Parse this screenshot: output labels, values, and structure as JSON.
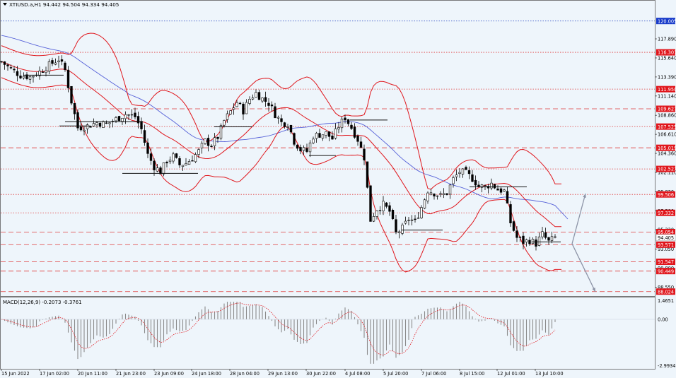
{
  "header": {
    "symbol_line": "XTIUSD.a,H1  94.442 94.504 94.334 94.405"
  },
  "macd_header": "MACD(12,26,9) -0.2073 -0.3761",
  "colors": {
    "background": "#eef5fb",
    "bb": "#e0161c",
    "ma": "#5560d8",
    "candle": "#000000",
    "level_line": "#e03a3a",
    "level_label_bg": "#e0161c",
    "price_label_bg": "#ffffff",
    "top_label_bg": "#1538c9",
    "macd_hist": "#8a8a8a",
    "macd_signal": "#e0161c",
    "arrow": "#8c93a6"
  },
  "chart_data": [
    {
      "type": "candlestick",
      "name": "price",
      "ylim": [
        87.5,
        122.4
      ],
      "x_tick_labels": [
        "15 Jun 2022",
        "17 Jun 02:00",
        "20 Jun 11:00",
        "21 Jun 23:00",
        "23 Jun 09:00",
        "24 Jun 18:00",
        "28 Jun 04:00",
        "29 Jun 13:00",
        "30 Jun 22:00",
        "4 Jul 08:00",
        "5 Jul 20:00",
        "7 Jul 06:00",
        "8 Jul 15:00",
        "12 Jul 01:00",
        "13 Jul 10:00"
      ],
      "y_axis_labels": [
        "117.890",
        "115.640",
        "113.390",
        "111.140",
        "108.860",
        "106.610",
        "104.360",
        "102.110",
        "99.830",
        "97.580",
        "95.330",
        "93.050",
        "90.800",
        "88.550"
      ],
      "horizontal_levels": [
        {
          "label": "120.005",
          "value": 120.005,
          "highlight": "blue"
        },
        {
          "label": "116.301",
          "value": 116.301
        },
        {
          "label": "111.950",
          "value": 111.95
        },
        {
          "label": "109.627",
          "value": 109.627
        },
        {
          "label": "107.525",
          "value": 107.525
        },
        {
          "label": "105.019",
          "value": 105.019
        },
        {
          "label": "102.521",
          "value": 102.521
        },
        {
          "label": "99.506",
          "value": 99.506
        },
        {
          "label": "97.332",
          "value": 97.332
        },
        {
          "label": "95.054",
          "value": 95.054
        },
        {
          "label": "93.571",
          "value": 93.571
        },
        {
          "label": "91.547",
          "value": 91.547
        },
        {
          "label": "90.449",
          "value": 90.449
        },
        {
          "label": "88.024",
          "value": 88.024
        }
      ],
      "current_price": {
        "label": "94.405",
        "value": 94.405
      },
      "last_bar": {
        "open": 94.442,
        "high": 94.504,
        "low": 94.334,
        "close": 94.405
      },
      "close_path": [
        [
          0,
          115.2
        ],
        [
          3,
          114.3
        ],
        [
          6,
          113.6
        ],
        [
          9,
          113.4
        ],
        [
          12,
          114.0
        ],
        [
          15,
          114.8
        ],
        [
          18,
          115.5
        ],
        [
          20,
          114.2
        ],
        [
          22,
          110.5
        ],
        [
          24,
          107.4
        ],
        [
          27,
          107.6
        ],
        [
          30,
          108.0
        ],
        [
          33,
          107.8
        ],
        [
          36,
          108.4
        ],
        [
          39,
          109.0
        ],
        [
          42,
          108.7
        ],
        [
          44,
          107.2
        ],
        [
          46,
          104.2
        ],
        [
          48,
          102.8
        ],
        [
          50,
          102.2
        ],
        [
          52,
          103.5
        ],
        [
          54,
          104.0
        ],
        [
          56,
          103.0
        ],
        [
          58,
          103.2
        ],
        [
          60,
          103.8
        ],
        [
          62,
          104.6
        ],
        [
          64,
          105.8
        ],
        [
          66,
          105.4
        ],
        [
          68,
          106.3
        ],
        [
          70,
          108.2
        ],
        [
          72,
          109.3
        ],
        [
          74,
          110.4
        ],
        [
          76,
          109.4
        ],
        [
          78,
          110.8
        ],
        [
          80,
          111.5
        ],
        [
          82,
          110.8
        ],
        [
          84,
          110.3
        ],
        [
          86,
          109.0
        ],
        [
          88,
          108.0
        ],
        [
          90,
          107.9
        ],
        [
          92,
          105.8
        ],
        [
          94,
          104.8
        ],
        [
          96,
          104.6
        ],
        [
          98,
          106.4
        ],
        [
          100,
          106.6
        ],
        [
          102,
          106.7
        ],
        [
          104,
          106.1
        ],
        [
          106,
          107.6
        ],
        [
          108,
          108.6
        ],
        [
          110,
          107.4
        ],
        [
          112,
          106.0
        ],
        [
          114,
          103.9
        ],
        [
          116,
          96.5
        ],
        [
          118,
          97.8
        ],
        [
          120,
          98.3
        ],
        [
          122,
          97.5
        ],
        [
          124,
          94.9
        ],
        [
          126,
          95.5
        ],
        [
          128,
          96.6
        ],
        [
          130,
          96.3
        ],
        [
          132,
          98.0
        ],
        [
          134,
          100.0
        ],
        [
          136,
          99.7
        ],
        [
          138,
          99.3
        ],
        [
          140,
          99.7
        ],
        [
          142,
          101.3
        ],
        [
          144,
          102.2
        ],
        [
          146,
          102.0
        ],
        [
          148,
          101.4
        ],
        [
          150,
          100.5
        ],
        [
          152,
          100.4
        ],
        [
          154,
          100.8
        ],
        [
          156,
          100.1
        ],
        [
          158,
          99.9
        ],
        [
          160,
          96.2
        ],
        [
          162,
          94.4
        ],
        [
          164,
          93.9
        ],
        [
          166,
          94.1
        ],
        [
          168,
          93.7
        ],
        [
          170,
          94.8
        ],
        [
          172,
          93.9
        ],
        [
          174,
          94.4
        ]
      ]
    },
    {
      "type": "histogram",
      "name": "MACD(12,26,9)",
      "ylim": [
        -2.9934,
        1.4651
      ],
      "y_axis_labels": [
        "1.4651",
        "0.00",
        "-2.9934"
      ],
      "last_values": {
        "macd": -0.2073,
        "signal": -0.3761
      }
    }
  ]
}
